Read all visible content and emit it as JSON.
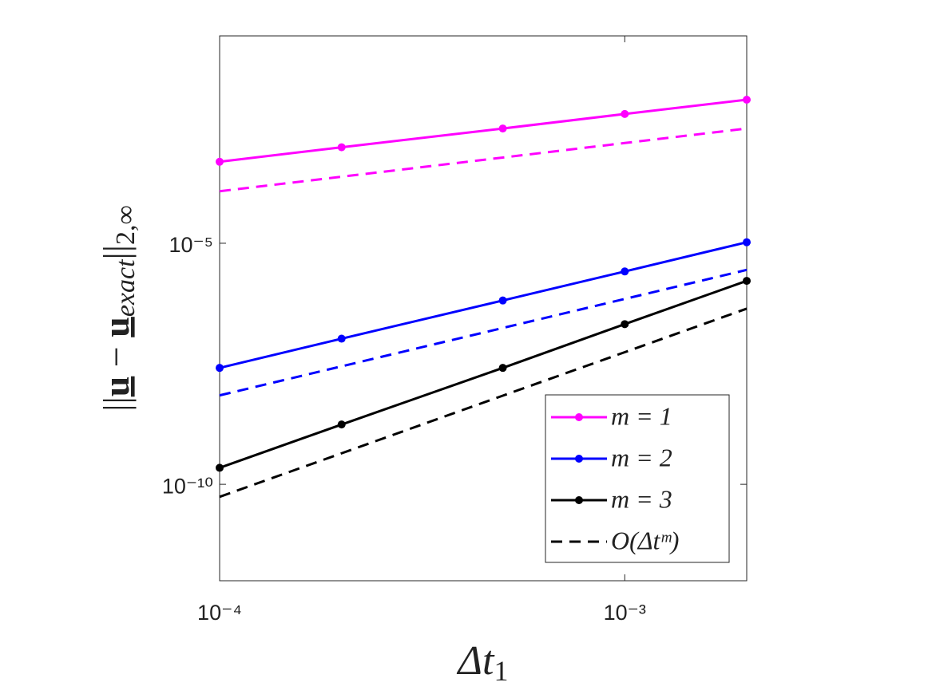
{
  "chart_data": {
    "type": "line",
    "xlabel": [
      "Δt",
      "1"
    ],
    "ylabel": [
      "||",
      "u",
      " − ",
      "u",
      "exact",
      "||",
      "2,∞"
    ],
    "x": [
      0.0001,
      0.0002,
      0.0005,
      0.001,
      0.002
    ],
    "series": [
      {
        "name": "m = 1",
        "color": "#ff00ff",
        "values": [
          0.00049,
          0.00098,
          0.0024,
          0.0048,
          0.0095
        ]
      },
      {
        "name": "m = 2",
        "color": "#0000ff",
        "values": [
          2.6e-08,
          1.05e-07,
          6.5e-07,
          2.6e-06,
          1.05e-05
        ]
      },
      {
        "name": "m = 3",
        "color": "#000000",
        "values": [
          2.2e-10,
          1.74e-09,
          2.6e-08,
          2.1e-07,
          1.66e-06
        ]
      }
    ],
    "reference_name": "O(Δtᵐ)",
    "reference_color": "#000000",
    "reference_lines": [
      {
        "color": "#ff00ff",
        "values": [
          0.00012,
          0.00024,
          0.0006,
          0.0012,
          0.0024
        ]
      },
      {
        "color": "#0000ff",
        "values": [
          7e-09,
          2.8e-08,
          1.75e-07,
          7e-07,
          2.8e-06
        ]
      },
      {
        "color": "#000000",
        "values": [
          5.5e-11,
          4.4e-10,
          6.9e-09,
          5.5e-08,
          4.4e-07
        ]
      }
    ],
    "xlim": [
      0.0001,
      0.002
    ],
    "ylim": [
      1e-12,
      0.2
    ],
    "xticks": [
      {
        "value": 0.0001,
        "label": "10⁻⁴"
      },
      {
        "value": 0.001,
        "label": "10⁻³"
      }
    ],
    "yticks": [
      {
        "value": 1e-10,
        "label": "10⁻¹⁰"
      },
      {
        "value": 1e-05,
        "label": "10⁻⁵"
      }
    ],
    "xscale": "log",
    "yscale": "log",
    "legend": "lower right"
  }
}
